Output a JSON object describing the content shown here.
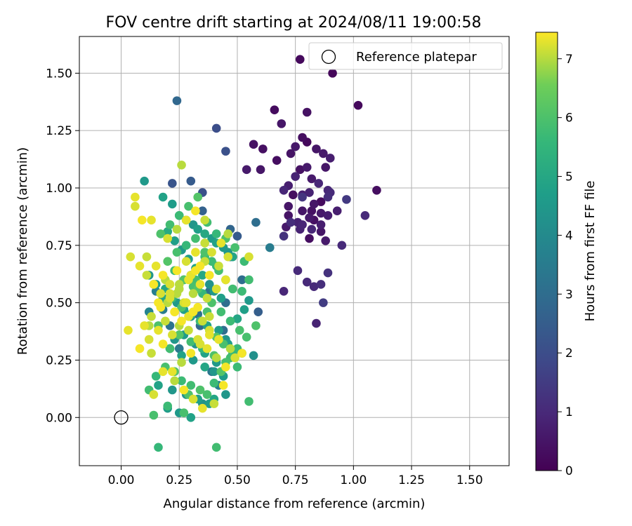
{
  "chart_data": {
    "type": "scatter",
    "title": "FOV centre drift starting at 2024/08/11 19:00:58",
    "xlabel": "Angular distance from reference (arcmin)",
    "ylabel": "Rotation from reference (arcmin)",
    "xlim": [
      -0.18,
      1.67
    ],
    "ylim": [
      -0.21,
      1.66
    ],
    "xticks": [
      "0.00",
      "0.25",
      "0.50",
      "0.75",
      "1.00",
      "1.25",
      "1.50"
    ],
    "yticks": [
      "0.00",
      "0.25",
      "0.50",
      "0.75",
      "1.00",
      "1.25",
      "1.50"
    ],
    "grid": true,
    "legend": {
      "position": "top-right",
      "entries": [
        "Reference platepar"
      ]
    },
    "reference_point": {
      "x": 0.0,
      "y": 0.0,
      "marker": "open-circle"
    },
    "colorbar": {
      "label": "Hours from first FF file",
      "range": [
        0,
        7.45
      ],
      "ticks": [
        "0",
        "1",
        "2",
        "3",
        "4",
        "5",
        "6",
        "7"
      ],
      "colormap": "viridis"
    },
    "series": [
      {
        "x": [
          0.77,
          0.91,
          1.02,
          0.66,
          0.69,
          0.8,
          0.6,
          0.54,
          0.57,
          0.61,
          0.67,
          0.73,
          0.75,
          0.78,
          0.8,
          0.84,
          0.87,
          0.9,
          0.77,
          0.8,
          0.75,
          0.7,
          0.72,
          0.82,
          0.88,
          0.85,
          0.9,
          0.78,
          0.74,
          0.86,
          0.93,
          0.78,
          0.81,
          0.83,
          0.72,
          0.81,
          0.77,
          0.86,
          0.88,
          0.82,
          0.83,
          0.76,
          0.95,
          0.86,
          0.78,
          0.72,
          0.73,
          0.81,
          0.89,
          0.89,
          1.1,
          1.05,
          0.86,
          0.82,
          0.71,
          0.7,
          0.78,
          0.89,
          0.97,
          0.89,
          0.86,
          0.83,
          0.8,
          0.87,
          0.84,
          0.76,
          0.7
        ],
        "y": [
          1.56,
          1.5,
          1.36,
          1.34,
          1.28,
          1.33,
          1.08,
          1.08,
          1.19,
          1.17,
          1.12,
          1.15,
          1.18,
          1.22,
          1.2,
          1.17,
          1.15,
          1.13,
          1.08,
          1.09,
          1.05,
          0.99,
          1.01,
          1.04,
          1.09,
          1.02,
          0.98,
          0.97,
          0.97,
          0.94,
          0.9,
          0.9,
          0.87,
          0.86,
          0.88,
          0.78,
          0.82,
          0.81,
          0.77,
          0.9,
          0.93,
          0.85,
          0.75,
          0.89,
          0.84,
          0.92,
          0.85,
          0.98,
          0.88,
          0.99,
          0.99,
          0.88,
          0.84,
          0.82,
          0.83,
          0.79,
          0.96,
          0.96,
          0.95,
          0.63,
          0.58,
          0.57,
          0.59,
          0.5,
          0.41,
          0.64,
          0.55
        ],
        "hours": [
          0.2,
          0.15,
          0.2,
          0.25,
          0.5,
          0.4,
          0.5,
          0.6,
          0.4,
          0.35,
          0.3,
          0.45,
          0.55,
          0.3,
          0.2,
          0.5,
          0.6,
          0.7,
          0.4,
          0.6,
          0.8,
          0.9,
          0.7,
          0.6,
          0.5,
          0.9,
          1.0,
          0.7,
          0.3,
          0.25,
          0.7,
          0.5,
          0.6,
          0.35,
          0.45,
          0.3,
          0.8,
          0.5,
          0.6,
          0.4,
          0.5,
          0.8,
          1.0,
          0.6,
          0.9,
          0.5,
          1.1,
          0.8,
          0.7,
          0.9,
          0.3,
          1.0,
          0.7,
          0.9,
          0.6,
          1.2,
          1.3,
          1.1,
          1.4,
          1.2,
          1.1,
          1.0,
          1.0,
          1.5,
          0.8,
          1.0,
          0.9
        ]
      },
      {
        "x": [
          0.24,
          0.41,
          0.45,
          0.5,
          0.3,
          0.35,
          0.22,
          0.47,
          0.58,
          0.64,
          0.59,
          0.57,
          0.45,
          0.38,
          0.3,
          0.27,
          0.33,
          0.34,
          0.44,
          0.39,
          0.42,
          0.35,
          0.47,
          0.52,
          0.21,
          0.25,
          0.18,
          0.15,
          0.12
        ],
        "y": [
          1.38,
          1.26,
          1.16,
          0.79,
          1.03,
          0.98,
          1.02,
          0.82,
          0.85,
          0.74,
          0.46,
          0.27,
          0.5,
          0.55,
          0.62,
          0.6,
          0.45,
          0.4,
          0.38,
          0.2,
          0.14,
          0.9,
          0.7,
          0.6,
          0.4,
          0.3,
          0.47,
          0.55,
          0.46
        ],
        "hours": [
          2.8,
          2.0,
          2.1,
          2.4,
          2.4,
          2.1,
          2.2,
          2.7,
          3.0,
          3.5,
          2.5,
          4.2,
          3.0,
          3.2,
          3.0,
          3.4,
          3.1,
          2.8,
          3.0,
          3.3,
          3.6,
          2.6,
          3.3,
          3.0,
          3.2,
          3.4,
          3.5,
          3.6,
          3.8
        ]
      },
      {
        "x": [
          0.1,
          0.18,
          0.22,
          0.25,
          0.28,
          0.31,
          0.33,
          0.36,
          0.39,
          0.41,
          0.44,
          0.46,
          0.48,
          0.2,
          0.23,
          0.26,
          0.29,
          0.32,
          0.35,
          0.38,
          0.4,
          0.43,
          0.12,
          0.15,
          0.19,
          0.24,
          0.27,
          0.3,
          0.34,
          0.37,
          0.42,
          0.45,
          0.5,
          0.53,
          0.55,
          0.21,
          0.26,
          0.31,
          0.36,
          0.4,
          0.44,
          0.16,
          0.22,
          0.28,
          0.33,
          0.38,
          0.14,
          0.18,
          0.23,
          0.27,
          0.32,
          0.36,
          0.41,
          0.46,
          0.52,
          0.2,
          0.25,
          0.3,
          0.35,
          0.4,
          0.45
        ],
        "y": [
          1.03,
          0.96,
          0.93,
          0.88,
          0.86,
          0.84,
          0.82,
          0.8,
          0.78,
          0.76,
          0.74,
          0.72,
          0.7,
          0.81,
          0.77,
          0.73,
          0.69,
          0.65,
          0.62,
          0.58,
          0.55,
          0.52,
          0.62,
          0.58,
          0.56,
          0.5,
          0.47,
          0.44,
          0.42,
          0.4,
          0.38,
          0.34,
          0.43,
          0.47,
          0.51,
          0.3,
          0.27,
          0.25,
          0.22,
          0.2,
          0.18,
          0.14,
          0.12,
          0.1,
          0.08,
          0.06,
          0.58,
          0.52,
          0.34,
          0.36,
          0.32,
          0.28,
          0.24,
          0.32,
          0.28,
          0.04,
          0.02,
          0.0,
          0.06,
          0.08,
          0.1
        ],
        "hours": [
          4.5,
          4.8,
          4.6,
          4.3,
          4.9,
          4.4,
          4.7,
          5.0,
          4.6,
          4.8,
          4.5,
          4.4,
          4.9,
          5.1,
          4.7,
          4.5,
          4.6,
          4.8,
          5.0,
          4.3,
          4.5,
          4.7,
          4.4,
          4.6,
          4.9,
          4.5,
          4.7,
          4.3,
          4.5,
          4.8,
          4.6,
          4.4,
          4.9,
          4.7,
          4.5,
          4.6,
          4.8,
          4.5,
          4.9,
          4.4,
          4.6,
          4.8,
          4.4,
          4.3,
          4.7,
          4.6,
          4.5,
          4.9,
          4.4,
          4.6,
          4.3,
          4.8,
          4.5,
          4.7,
          4.4,
          4.6,
          4.5,
          4.8,
          4.3,
          4.9,
          4.4
        ]
      },
      {
        "x": [
          0.16,
          0.41,
          0.27,
          0.2,
          0.29,
          0.12,
          0.15,
          0.19,
          0.23,
          0.26,
          0.3,
          0.34,
          0.37,
          0.4,
          0.43,
          0.47,
          0.5,
          0.54,
          0.58,
          0.52,
          0.55,
          0.2,
          0.24,
          0.28,
          0.32,
          0.36,
          0.39,
          0.42,
          0.45,
          0.48,
          0.22,
          0.26,
          0.3,
          0.34,
          0.38,
          0.41,
          0.44,
          0.48,
          0.17,
          0.21,
          0.25,
          0.29,
          0.33,
          0.37,
          0.41,
          0.45,
          0.49,
          0.53,
          0.23,
          0.27,
          0.31,
          0.35,
          0.39,
          0.43,
          0.47,
          0.51,
          0.25,
          0.3,
          0.35,
          0.4,
          0.45,
          0.5,
          0.55,
          0.33,
          0.37,
          0.41,
          0.28,
          0.32,
          0.36,
          0.14,
          0.16,
          0.21
        ],
        "y": [
          -0.13,
          -0.13,
          0.02,
          0.05,
          0.1,
          0.12,
          0.18,
          0.22,
          0.2,
          0.16,
          0.14,
          0.12,
          0.1,
          0.15,
          0.2,
          0.26,
          0.3,
          0.35,
          0.4,
          0.55,
          0.6,
          0.68,
          0.72,
          0.75,
          0.78,
          0.72,
          0.68,
          0.64,
          0.6,
          0.56,
          0.52,
          0.48,
          0.45,
          0.42,
          0.38,
          0.35,
          0.32,
          0.28,
          0.8,
          0.84,
          0.88,
          0.92,
          0.96,
          0.85,
          0.8,
          0.78,
          0.74,
          0.68,
          0.64,
          0.6,
          0.57,
          0.54,
          0.5,
          0.46,
          0.42,
          0.38,
          0.36,
          0.33,
          0.3,
          0.27,
          0.24,
          0.22,
          0.07,
          0.56,
          0.46,
          0.66,
          0.5,
          0.6,
          0.7,
          0.01,
          0.4,
          0.3
        ],
        "hours": [
          5.6,
          5.8,
          5.9,
          5.7,
          6.0,
          5.8,
          5.6,
          5.9,
          6.1,
          5.7,
          5.8,
          6.0,
          5.9,
          5.7,
          6.1,
          5.8,
          5.6,
          5.9,
          6.0,
          5.7,
          5.8,
          6.1,
          5.9,
          5.6,
          5.8,
          6.0,
          5.7,
          5.9,
          6.1,
          5.8,
          5.6,
          6.0,
          5.9,
          5.7,
          5.8,
          6.1,
          5.9,
          5.6,
          6.0,
          5.8,
          5.7,
          5.9,
          6.1,
          5.8,
          5.6,
          6.0,
          5.9,
          5.7,
          5.8,
          6.1,
          5.9,
          5.6,
          6.0,
          5.8,
          5.7,
          5.9,
          6.1,
          5.8,
          5.6,
          6.0,
          5.9,
          5.7,
          5.8,
          6.1,
          5.9,
          5.6,
          6.0,
          5.8,
          5.7,
          5.9,
          6.0,
          5.8
        ]
      },
      {
        "x": [
          0.26,
          0.06,
          0.06,
          0.09,
          0.13,
          0.11,
          0.15,
          0.18,
          0.21,
          0.24,
          0.28,
          0.31,
          0.35,
          0.38,
          0.42,
          0.47,
          0.52,
          0.55,
          0.08,
          0.11,
          0.14,
          0.17,
          0.2,
          0.23,
          0.26,
          0.29,
          0.33,
          0.37,
          0.41,
          0.45,
          0.49,
          0.1,
          0.13,
          0.17,
          0.21,
          0.25,
          0.29,
          0.32,
          0.36,
          0.39,
          0.43,
          0.46,
          0.08,
          0.12,
          0.16,
          0.19,
          0.23,
          0.27,
          0.31,
          0.34,
          0.38,
          0.42,
          0.46,
          0.22,
          0.26,
          0.3,
          0.34,
          0.38,
          0.13,
          0.18,
          0.22,
          0.25,
          0.29,
          0.33,
          0.37,
          0.41,
          0.45,
          0.19,
          0.24,
          0.28,
          0.32,
          0.36,
          0.16,
          0.21,
          0.25,
          0.3,
          0.34,
          0.38,
          0.14,
          0.18,
          0.23,
          0.27,
          0.31,
          0.35,
          0.4,
          0.44,
          0.2,
          0.24,
          0.28,
          0.32,
          0.36,
          0.04,
          0.03,
          0.12
        ],
        "y": [
          1.1,
          0.96,
          0.92,
          0.86,
          0.86,
          0.7,
          0.66,
          0.62,
          0.58,
          0.54,
          0.5,
          0.46,
          0.42,
          0.38,
          0.34,
          0.3,
          0.28,
          0.7,
          0.66,
          0.62,
          0.58,
          0.54,
          0.5,
          0.46,
          0.42,
          0.38,
          0.34,
          0.3,
          0.26,
          0.22,
          0.26,
          0.4,
          0.44,
          0.48,
          0.52,
          0.56,
          0.6,
          0.64,
          0.68,
          0.72,
          0.76,
          0.8,
          0.3,
          0.34,
          0.38,
          0.42,
          0.46,
          0.5,
          0.54,
          0.58,
          0.62,
          0.66,
          0.7,
          0.2,
          0.24,
          0.28,
          0.32,
          0.36,
          0.28,
          0.32,
          0.36,
          0.4,
          0.44,
          0.48,
          0.52,
          0.56,
          0.6,
          0.6,
          0.64,
          0.68,
          0.72,
          0.76,
          0.5,
          0.54,
          0.58,
          0.62,
          0.66,
          0.44,
          0.1,
          0.2,
          0.16,
          0.12,
          0.08,
          0.04,
          0.06,
          0.14,
          0.78,
          0.82,
          0.86,
          0.9,
          0.86,
          0.7,
          0.38,
          0.4
        ],
        "hours": [
          7.0,
          7.3,
          7.2,
          7.4,
          7.3,
          7.1,
          7.3,
          7.4,
          7.2,
          7.0,
          7.3,
          7.4,
          7.1,
          7.2,
          7.3,
          7.0,
          7.4,
          7.2,
          7.3,
          7.1,
          7.4,
          7.2,
          7.0,
          7.3,
          7.4,
          7.1,
          7.2,
          7.3,
          7.0,
          7.4,
          7.2,
          7.3,
          7.1,
          7.4,
          7.2,
          7.0,
          7.3,
          7.4,
          7.1,
          7.2,
          7.3,
          7.0,
          7.4,
          7.2,
          7.3,
          7.1,
          7.4,
          7.2,
          7.0,
          7.3,
          7.4,
          7.1,
          7.2,
          7.3,
          7.0,
          7.4,
          7.2,
          7.3,
          7.1,
          7.4,
          7.2,
          7.0,
          7.3,
          7.4,
          7.1,
          7.2,
          7.3,
          7.0,
          7.4,
          7.2,
          7.3,
          7.1,
          7.4,
          7.2,
          7.0,
          7.3,
          7.4,
          7.1,
          7.2,
          7.3,
          7.0,
          7.4,
          7.2,
          7.3,
          7.1,
          7.4,
          7.2,
          7.0,
          7.3,
          7.4,
          7.1,
          7.2,
          7.3,
          7.0
        ]
      }
    ]
  }
}
